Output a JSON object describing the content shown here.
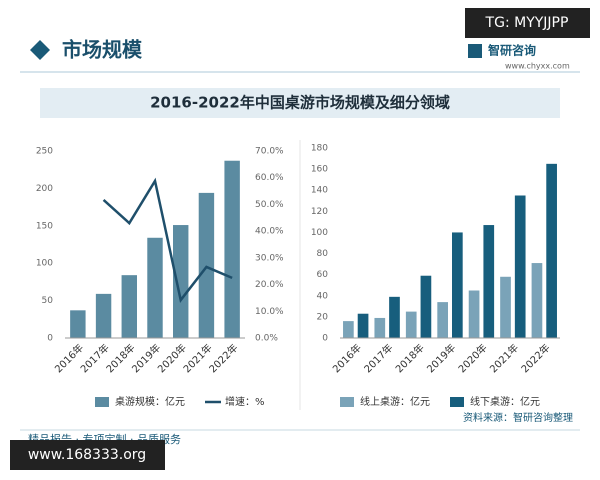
{
  "header": {
    "section": "市场规模",
    "logo": "智研咨询",
    "site": "www.chyxx.com"
  },
  "title": "2016-2022年中国桌游市场规模及细分领域",
  "chart_data": [
    {
      "type": "bar",
      "categories": [
        "2016年",
        "2017年",
        "2018年",
        "2019年",
        "2020年",
        "2021年",
        "2022年"
      ],
      "series": [
        {
          "name": "桌游规模：亿元",
          "type": "bar",
          "color": "#5b8ba1",
          "values": [
            37,
            59,
            84,
            134,
            151,
            194,
            237
          ]
        },
        {
          "name": "增速：%",
          "type": "line",
          "axis": "y2",
          "color": "#1f4f6b",
          "values": [
            null,
            51.7,
            43,
            58.8,
            14.2,
            26.6,
            22.5
          ]
        }
      ],
      "ylim": [
        0,
        250
      ],
      "yticks": [
        0,
        50,
        100,
        150,
        200,
        250
      ],
      "y2lim": [
        0,
        70
      ],
      "y2ticks": [
        {
          "value": 0,
          "label": "0.0%"
        },
        {
          "value": 10,
          "label": "10.0%"
        },
        {
          "value": 20,
          "label": "20.0%"
        },
        {
          "value": 30,
          "label": "30.0%"
        },
        {
          "value": 40,
          "label": "40.0%"
        },
        {
          "value": 50,
          "label": "50.0%"
        },
        {
          "value": 60,
          "label": "60.0%"
        },
        {
          "value": 70,
          "label": "70.0%"
        }
      ],
      "grid": false
    },
    {
      "type": "bar",
      "categories": [
        "2016年",
        "2017年",
        "2018年",
        "2019年",
        "2020年",
        "2021年",
        "2022年"
      ],
      "series": [
        {
          "name": "线上桌游：亿元",
          "type": "bar",
          "color": "#7aa3b8",
          "values": [
            16,
            19,
            25,
            34,
            45,
            58,
            71
          ]
        },
        {
          "name": "线下桌游：亿元",
          "type": "bar",
          "color": "#175e7d",
          "values": [
            23,
            39,
            59,
            100,
            107,
            135,
            165
          ]
        }
      ],
      "ylim": [
        0,
        180
      ],
      "yticks": [
        0,
        20,
        40,
        60,
        80,
        100,
        120,
        140,
        160,
        180
      ],
      "grid": false
    }
  ],
  "source": "资料来源：智研咨询整理",
  "footer": "精品报告 · 专项定制 · 品质服务",
  "watermarks": [
    "TG: MYYJJPP",
    "www.168333.org"
  ]
}
